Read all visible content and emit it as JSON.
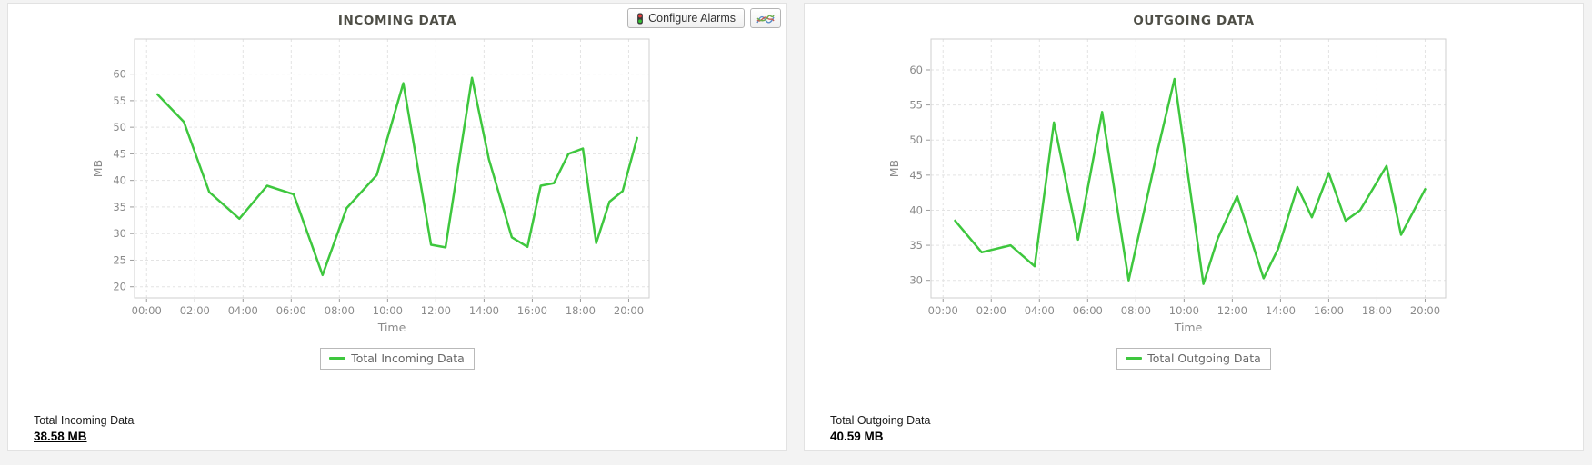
{
  "toolbar": {
    "configure_alarms_label": "Configure Alarms"
  },
  "panels": [
    {
      "summary_label": "Total Incoming Data",
      "summary_value": "38.58 MB"
    },
    {
      "summary_label": "Total Outgoing Data",
      "summary_value": "40.59 MB"
    }
  ],
  "colors": {
    "line_green": "#3ec73e",
    "grid": "#e3e3e3",
    "axis_frame": "#cfcfcf",
    "axis_text": "#8a8a8a",
    "title_text": "#4e4e46",
    "traffic_red": "#e23b3b",
    "traffic_green": "#35c135",
    "icon_blue": "#5b8dc8",
    "icon_red": "#c45a52",
    "icon_green": "#6fae4e"
  },
  "chart_data": [
    {
      "type": "line",
      "title": "INCOMING DATA",
      "xlabel": "Time",
      "ylabel": "MB",
      "legend_label": "Total Incoming Data",
      "legend_position": "bottom",
      "grid": "dashed",
      "line_color": "#3ec73e",
      "y_ticks": [
        20,
        25,
        30,
        35,
        40,
        45,
        50,
        55,
        60
      ],
      "x_ticks": [
        {
          "hour": 0,
          "label": "00:00"
        },
        {
          "hour": 2,
          "label": "02:00"
        },
        {
          "hour": 4,
          "label": "04:00"
        },
        {
          "hour": 6,
          "label": "06:00"
        },
        {
          "hour": 8,
          "label": "08:00"
        },
        {
          "hour": 10,
          "label": "10:00"
        },
        {
          "hour": 12,
          "label": "12:00"
        },
        {
          "hour": 14,
          "label": "14:00"
        },
        {
          "hour": 16,
          "label": "16:00"
        },
        {
          "hour": 18,
          "label": "18:00"
        },
        {
          "hour": 20,
          "label": "20:00"
        }
      ],
      "x_domain": [
        -0.5,
        20.85
      ],
      "y_domain": [
        17.9,
        66.6
      ],
      "points": [
        [
          0.45,
          56.2
        ],
        [
          1.55,
          51.0
        ],
        [
          2.6,
          37.8
        ],
        [
          3.85,
          32.8
        ],
        [
          5.0,
          39.0
        ],
        [
          6.1,
          37.4
        ],
        [
          7.3,
          22.2
        ],
        [
          8.3,
          34.8
        ],
        [
          9.55,
          41.0
        ],
        [
          10.65,
          58.3
        ],
        [
          11.8,
          27.9
        ],
        [
          12.4,
          27.4
        ],
        [
          13.5,
          59.3
        ],
        [
          14.2,
          44.0
        ],
        [
          15.15,
          29.3
        ],
        [
          15.8,
          27.5
        ],
        [
          16.35,
          39.0
        ],
        [
          16.9,
          39.5
        ],
        [
          17.5,
          45.0
        ],
        [
          18.1,
          46.0
        ],
        [
          18.65,
          28.2
        ],
        [
          19.2,
          36.0
        ],
        [
          19.75,
          38.0
        ],
        [
          20.35,
          48.0
        ]
      ]
    },
    {
      "type": "line",
      "title": "OUTGOING DATA",
      "xlabel": "Time",
      "ylabel": "MB",
      "legend_label": "Total Outgoing Data",
      "legend_position": "bottom",
      "grid": "dashed",
      "line_color": "#3ec73e",
      "y_ticks": [
        30,
        35,
        40,
        45,
        50,
        55,
        60
      ],
      "x_ticks": [
        {
          "hour": 0,
          "label": "00:00"
        },
        {
          "hour": 2,
          "label": "02:00"
        },
        {
          "hour": 4,
          "label": "04:00"
        },
        {
          "hour": 6,
          "label": "06:00"
        },
        {
          "hour": 8,
          "label": "08:00"
        },
        {
          "hour": 10,
          "label": "10:00"
        },
        {
          "hour": 12,
          "label": "12:00"
        },
        {
          "hour": 14,
          "label": "14:00"
        },
        {
          "hour": 16,
          "label": "16:00"
        },
        {
          "hour": 18,
          "label": "18:00"
        },
        {
          "hour": 20,
          "label": "20:00"
        }
      ],
      "x_domain": [
        -0.5,
        20.85
      ],
      "y_domain": [
        27.5,
        64.4
      ],
      "points": [
        [
          0.5,
          38.5
        ],
        [
          1.6,
          34.0
        ],
        [
          2.8,
          35.0
        ],
        [
          3.8,
          32.0
        ],
        [
          4.6,
          52.5
        ],
        [
          5.6,
          35.8
        ],
        [
          6.6,
          54.0
        ],
        [
          7.7,
          30.0
        ],
        [
          8.9,
          48.5
        ],
        [
          9.6,
          58.7
        ],
        [
          10.8,
          29.5
        ],
        [
          11.4,
          36.0
        ],
        [
          12.2,
          42.0
        ],
        [
          13.3,
          30.3
        ],
        [
          13.9,
          34.5
        ],
        [
          14.7,
          43.3
        ],
        [
          15.3,
          39.0
        ],
        [
          16.0,
          45.3
        ],
        [
          16.7,
          38.5
        ],
        [
          17.3,
          40.0
        ],
        [
          18.4,
          46.3
        ],
        [
          19.0,
          36.5
        ],
        [
          20.0,
          43.0
        ]
      ]
    }
  ]
}
